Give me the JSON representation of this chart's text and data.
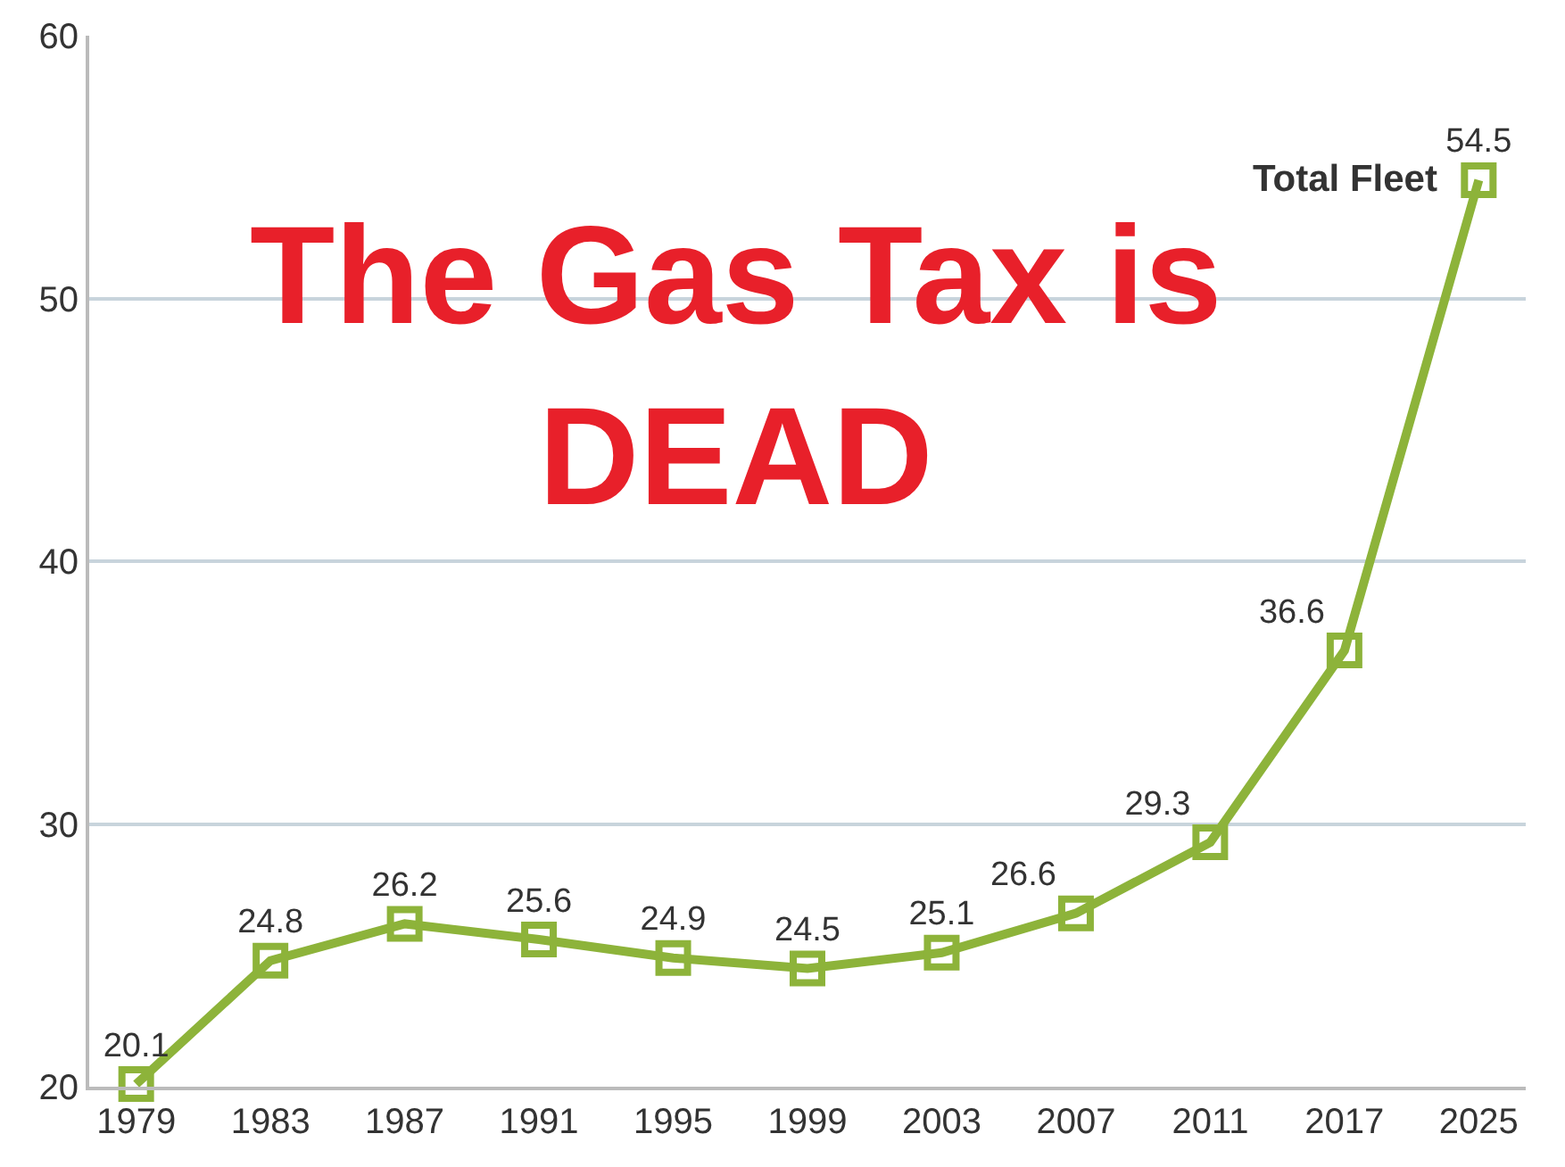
{
  "chart_data": {
    "type": "line",
    "title": "The Gas Tax is DEAD",
    "categories": [
      "1979",
      "1983",
      "1987",
      "1991",
      "1995",
      "1999",
      "2003",
      "2007",
      "2011",
      "2017",
      "2025"
    ],
    "series": [
      {
        "name": "Total Fleet",
        "color": "#8db33a",
        "values": [
          20.1,
          24.8,
          26.2,
          25.6,
          24.9,
          24.5,
          25.1,
          26.6,
          29.3,
          36.6,
          54.5
        ]
      }
    ],
    "ylim": [
      20,
      60
    ],
    "yticks": [
      20,
      30,
      40,
      50,
      60
    ],
    "grid": "y",
    "legend": false,
    "marker": "square",
    "line_style": "solid",
    "data_labels": true
  }
}
